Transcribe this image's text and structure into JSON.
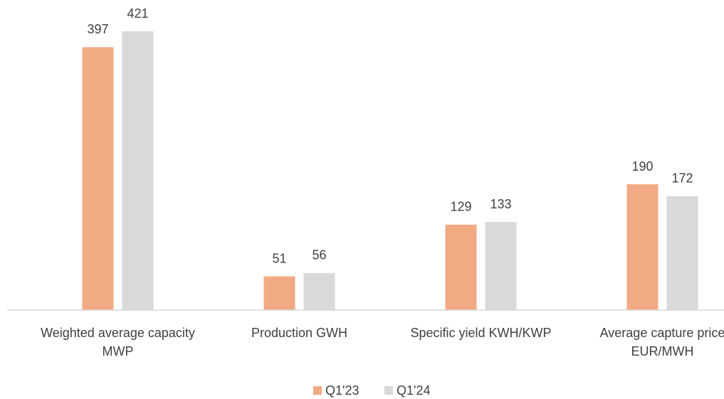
{
  "chart_data": {
    "type": "bar",
    "categories": [
      "Weighted average capacity MWP",
      "Production GWH",
      "Specific yield KWH/KWP",
      "Average capture price EUR/MWH"
    ],
    "series": [
      {
        "name": "Q1'23",
        "color": "#f2aa84",
        "values": [
          397,
          51,
          129,
          190
        ]
      },
      {
        "name": "Q1'24",
        "color": "#d9d9d9",
        "values": [
          421,
          56,
          133,
          172
        ]
      }
    ],
    "ylim": [
      0,
      450
    ],
    "grid": false,
    "legend": "bottom"
  }
}
